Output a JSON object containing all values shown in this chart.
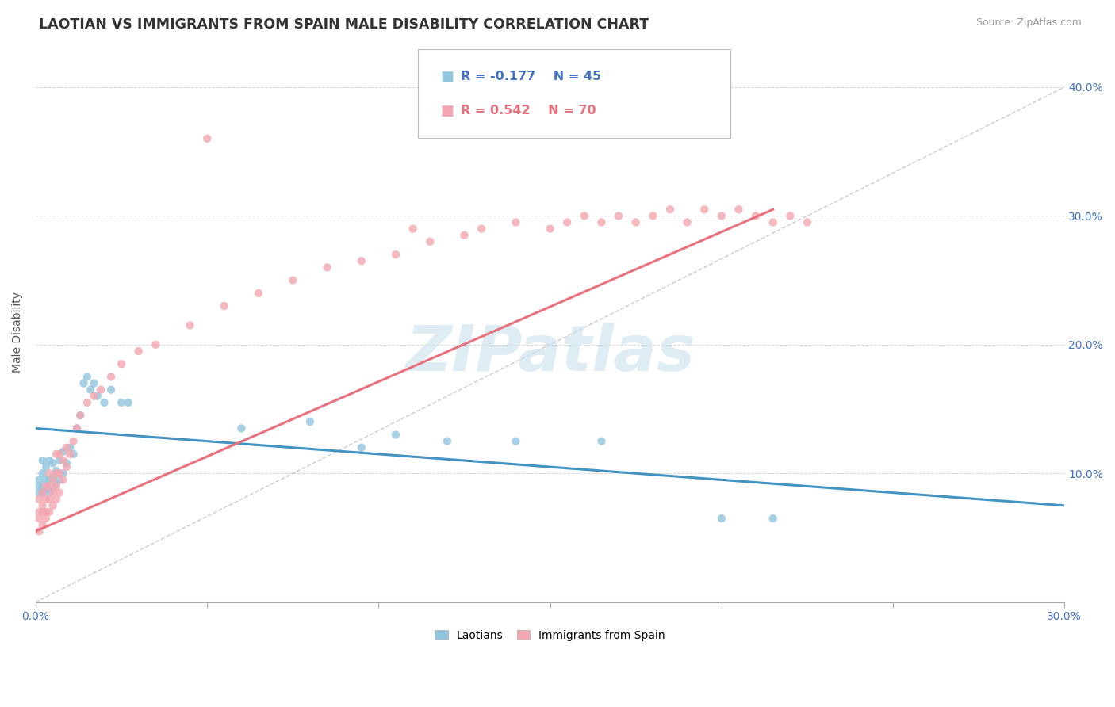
{
  "title": "LAOTIAN VS IMMIGRANTS FROM SPAIN MALE DISABILITY CORRELATION CHART",
  "source_text": "Source: ZipAtlas.com",
  "ylabel": "Male Disability",
  "xlim": [
    0.0,
    0.3
  ],
  "ylim": [
    0.0,
    0.42
  ],
  "xticks": [
    0.0,
    0.05,
    0.1,
    0.15,
    0.2,
    0.25,
    0.3
  ],
  "xticklabels": [
    "0.0%",
    "",
    "",
    "",
    "",
    "",
    "30.0%"
  ],
  "yticks": [
    0.0,
    0.1,
    0.2,
    0.3,
    0.4
  ],
  "yticklabels": [
    "",
    "10.0%",
    "20.0%",
    "30.0%",
    "40.0%"
  ],
  "blue_color": "#92C5DE",
  "pink_color": "#F4A6B0",
  "blue_line_color": "#4393C3",
  "pink_line_color": "#E8717D",
  "ref_line_color": "#CCCCCC",
  "legend_R_blue": "R = -0.177",
  "legend_N_blue": "N = 45",
  "legend_R_pink": "R = 0.542",
  "legend_N_pink": "N = 70",
  "legend_label_blue": "Laotians",
  "legend_label_pink": "Immigrants from Spain",
  "watermark": "ZIPatlas",
  "watermark_color": "#C8E0EE",
  "blue_scatter_x": [
    0.001,
    0.001,
    0.001,
    0.002,
    0.002,
    0.002,
    0.002,
    0.003,
    0.003,
    0.003,
    0.004,
    0.004,
    0.004,
    0.005,
    0.005,
    0.005,
    0.006,
    0.006,
    0.007,
    0.007,
    0.008,
    0.008,
    0.009,
    0.01,
    0.011,
    0.012,
    0.013,
    0.014,
    0.015,
    0.016,
    0.017,
    0.018,
    0.02,
    0.022,
    0.025,
    0.027,
    0.06,
    0.08,
    0.095,
    0.105,
    0.12,
    0.14,
    0.165,
    0.2,
    0.215
  ],
  "blue_scatter_y": [
    0.085,
    0.09,
    0.095,
    0.085,
    0.09,
    0.1,
    0.11,
    0.088,
    0.095,
    0.105,
    0.085,
    0.095,
    0.11,
    0.088,
    0.097,
    0.108,
    0.092,
    0.102,
    0.095,
    0.11,
    0.1,
    0.117,
    0.108,
    0.12,
    0.115,
    0.135,
    0.145,
    0.17,
    0.175,
    0.165,
    0.17,
    0.16,
    0.155,
    0.165,
    0.155,
    0.155,
    0.135,
    0.14,
    0.12,
    0.13,
    0.125,
    0.125,
    0.125,
    0.065,
    0.065
  ],
  "pink_scatter_x": [
    0.001,
    0.001,
    0.001,
    0.001,
    0.002,
    0.002,
    0.002,
    0.002,
    0.003,
    0.003,
    0.003,
    0.003,
    0.004,
    0.004,
    0.004,
    0.004,
    0.005,
    0.005,
    0.005,
    0.006,
    0.006,
    0.006,
    0.006,
    0.007,
    0.007,
    0.007,
    0.008,
    0.008,
    0.009,
    0.009,
    0.01,
    0.011,
    0.012,
    0.013,
    0.015,
    0.017,
    0.019,
    0.022,
    0.025,
    0.03,
    0.035,
    0.045,
    0.055,
    0.065,
    0.075,
    0.085,
    0.095,
    0.105,
    0.115,
    0.125,
    0.13,
    0.14,
    0.15,
    0.155,
    0.16,
    0.165,
    0.17,
    0.175,
    0.18,
    0.185,
    0.19,
    0.195,
    0.2,
    0.205,
    0.21,
    0.215,
    0.22,
    0.225,
    0.05,
    0.11
  ],
  "pink_scatter_y": [
    0.055,
    0.065,
    0.07,
    0.08,
    0.06,
    0.07,
    0.075,
    0.085,
    0.065,
    0.07,
    0.08,
    0.09,
    0.07,
    0.08,
    0.09,
    0.1,
    0.075,
    0.085,
    0.095,
    0.08,
    0.09,
    0.1,
    0.115,
    0.085,
    0.1,
    0.115,
    0.095,
    0.11,
    0.105,
    0.12,
    0.115,
    0.125,
    0.135,
    0.145,
    0.155,
    0.16,
    0.165,
    0.175,
    0.185,
    0.195,
    0.2,
    0.215,
    0.23,
    0.24,
    0.25,
    0.26,
    0.265,
    0.27,
    0.28,
    0.285,
    0.29,
    0.295,
    0.29,
    0.295,
    0.3,
    0.295,
    0.3,
    0.295,
    0.3,
    0.305,
    0.295,
    0.305,
    0.3,
    0.305,
    0.3,
    0.295,
    0.3,
    0.295,
    0.36,
    0.29
  ],
  "blue_trend_x": [
    0.0,
    0.3
  ],
  "blue_trend_y": [
    0.135,
    0.075
  ],
  "pink_trend_x": [
    0.0,
    0.215
  ],
  "pink_trend_y": [
    0.055,
    0.305
  ],
  "ref_line_x": [
    0.0,
    0.3
  ],
  "ref_line_y": [
    0.0,
    0.4
  ]
}
